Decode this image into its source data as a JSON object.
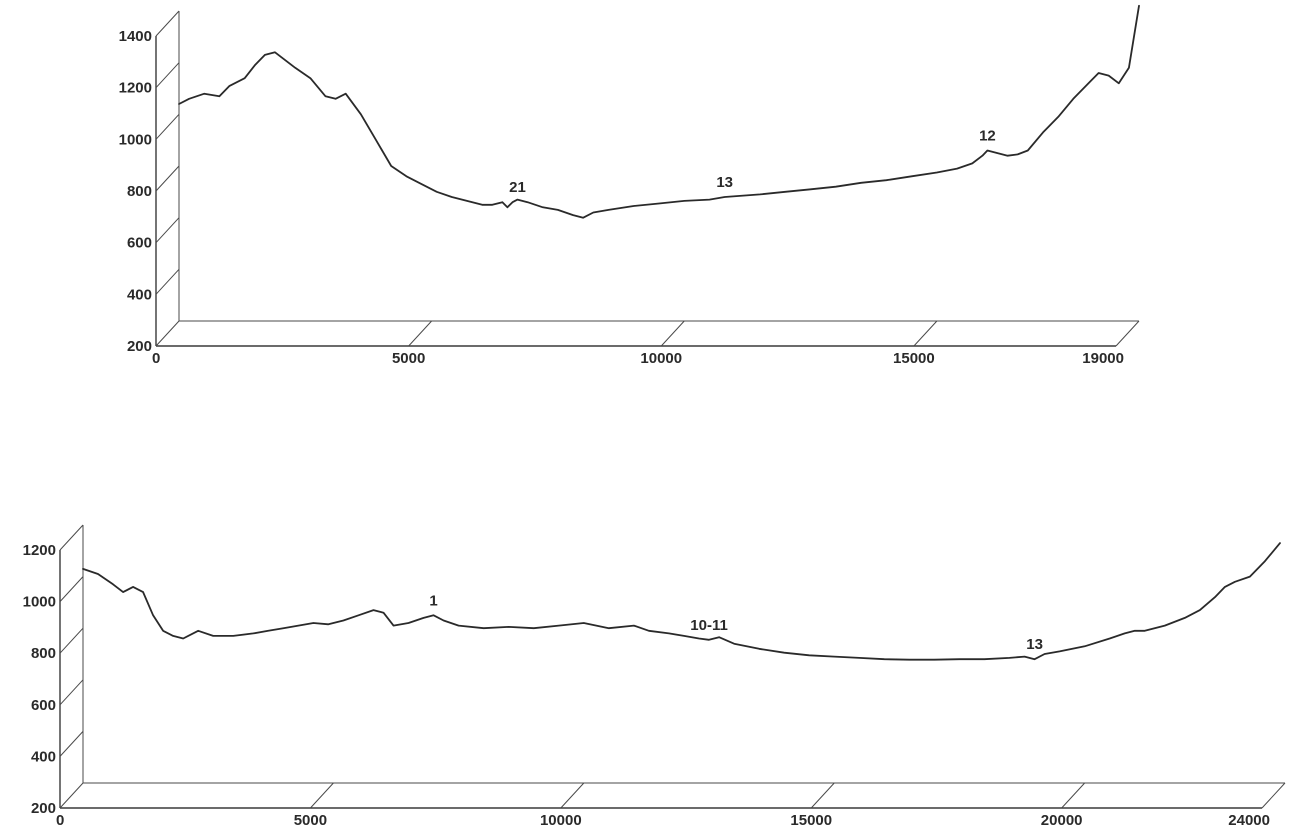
{
  "chart_data": [
    {
      "type": "line",
      "title": "",
      "xlabel": "",
      "ylabel": "",
      "xlim": [
        0,
        19000
      ],
      "ylim": [
        200,
        1400
      ],
      "x_ticks": [
        0,
        5000,
        10000,
        15000,
        19000
      ],
      "x_tick_labels": [
        "0",
        "5000",
        "10000",
        "15000",
        "19000"
      ],
      "y_ticks": [
        200,
        400,
        600,
        800,
        1000,
        1200,
        1400
      ],
      "y_tick_labels": [
        "200",
        "400",
        "600",
        "800",
        "1000",
        "1200",
        "1400"
      ],
      "grid": false,
      "legend": "none",
      "series": [
        {
          "x": [
            0,
            200,
            500,
            800,
            1000,
            1300,
            1500,
            1700,
            1900,
            2100,
            2300,
            2600,
            2900,
            3100,
            3300,
            3600,
            3900,
            4200,
            4500,
            4800,
            5100,
            5400,
            5700,
            6000,
            6200,
            6400,
            6500,
            6600,
            6700,
            6900,
            7200,
            7500,
            7800,
            8000,
            8200,
            8500,
            9000,
            9500,
            10000,
            10500,
            10800,
            11500,
            12000,
            12500,
            13000,
            13500,
            14000,
            14500,
            15000,
            15400,
            15700,
            15900,
            16000,
            16200,
            16400,
            16600,
            16800,
            17100,
            17400,
            17700,
            18000,
            18200,
            18400,
            18600,
            18800,
            19000
          ],
          "y": [
            1040,
            1060,
            1080,
            1070,
            1110,
            1140,
            1190,
            1230,
            1240,
            1210,
            1180,
            1140,
            1070,
            1060,
            1080,
            1000,
            900,
            800,
            760,
            730,
            700,
            680,
            665,
            650,
            650,
            660,
            640,
            660,
            670,
            660,
            640,
            630,
            610,
            600,
            620,
            630,
            645,
            655,
            665,
            670,
            680,
            690,
            700,
            710,
            720,
            735,
            745,
            760,
            775,
            790,
            810,
            840,
            860,
            850,
            840,
            845,
            860,
            930,
            990,
            1060,
            1120,
            1160,
            1150,
            1120,
            1180,
            1420
          ]
        }
      ],
      "annotations": [
        {
          "x": 6700,
          "y": 660,
          "text": "21"
        },
        {
          "x": 10800,
          "y": 680,
          "text": "13"
        },
        {
          "x": 16000,
          "y": 860,
          "text": "12"
        }
      ]
    },
    {
      "type": "line",
      "title": "",
      "xlabel": "",
      "ylabel": "",
      "xlim": [
        0,
        24000
      ],
      "ylim": [
        200,
        1200
      ],
      "x_ticks": [
        0,
        5000,
        10000,
        15000,
        20000,
        24000
      ],
      "x_tick_labels": [
        "0",
        "5000",
        "10000",
        "15000",
        "20000",
        "24000"
      ],
      "y_ticks": [
        200,
        400,
        600,
        800,
        1000,
        1200
      ],
      "y_tick_labels": [
        "200",
        "400",
        "600",
        "800",
        "1000",
        "1200"
      ],
      "grid": false,
      "legend": "none",
      "series": [
        {
          "x": [
            0,
            300,
            600,
            800,
            1000,
            1200,
            1400,
            1600,
            1800,
            2000,
            2300,
            2600,
            3000,
            3400,
            3700,
            4000,
            4300,
            4600,
            4900,
            5200,
            5500,
            5800,
            6000,
            6200,
            6500,
            6800,
            7000,
            7200,
            7500,
            8000,
            8500,
            9000,
            9500,
            10000,
            10500,
            11000,
            11300,
            11700,
            12000,
            12300,
            12500,
            12700,
            13000,
            13500,
            14000,
            14500,
            15000,
            15500,
            16000,
            16500,
            17000,
            17500,
            18000,
            18500,
            18800,
            19000,
            19200,
            19500,
            20000,
            20500,
            20800,
            21000,
            21200,
            21600,
            22000,
            22300,
            22600,
            22800,
            23000,
            23300,
            23600,
            23900
          ],
          "y": [
            1030,
            1010,
            970,
            940,
            960,
            940,
            850,
            790,
            770,
            760,
            790,
            770,
            770,
            780,
            790,
            800,
            810,
            820,
            815,
            830,
            850,
            870,
            860,
            810,
            820,
            840,
            850,
            830,
            810,
            800,
            805,
            800,
            810,
            820,
            800,
            810,
            790,
            780,
            770,
            760,
            755,
            765,
            740,
            720,
            705,
            695,
            690,
            685,
            680,
            678,
            678,
            680,
            680,
            685,
            690,
            680,
            700,
            710,
            730,
            760,
            780,
            790,
            790,
            810,
            840,
            870,
            920,
            960,
            980,
            1000,
            1060,
            1130
          ]
        }
      ],
      "annotations": [
        {
          "x": 7000,
          "y": 850,
          "text": "1"
        },
        {
          "x": 12500,
          "y": 755,
          "text": "10-11"
        },
        {
          "x": 19000,
          "y": 680,
          "text": "13"
        }
      ]
    }
  ]
}
